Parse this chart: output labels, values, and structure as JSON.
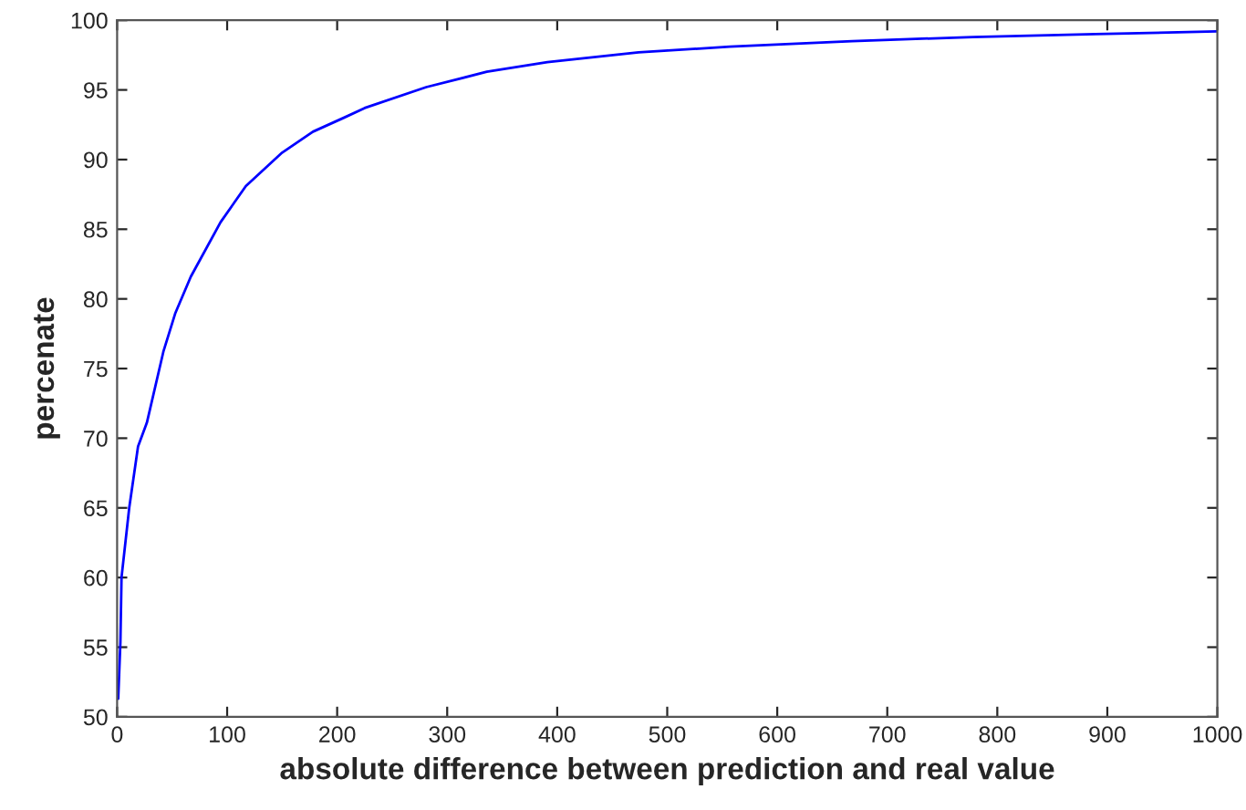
{
  "chart_data": {
    "type": "line",
    "xlabel": "absolute difference between prediction and real value",
    "ylabel": "percenate",
    "xlim": [
      0,
      1000
    ],
    "ylim": [
      50,
      100
    ],
    "xticks": [
      0,
      100,
      200,
      300,
      400,
      500,
      600,
      700,
      800,
      900,
      1000
    ],
    "yticks": [
      50,
      55,
      60,
      65,
      70,
      75,
      80,
      85,
      90,
      95,
      100
    ],
    "grid": false,
    "marker": "none",
    "line_style": "solid",
    "series": [
      {
        "color": "#0000ff",
        "x": [
          1,
          3,
          4,
          11,
          19,
          27,
          42,
          53,
          67,
          94,
          117,
          150,
          178,
          206,
          225,
          281,
          336,
          391,
          474,
          557,
          668,
          778,
          889,
          1000
        ],
        "values": [
          51.3,
          55.4,
          60.0,
          65.0,
          69.4,
          71.1,
          76.2,
          79.0,
          81.6,
          85.5,
          88.1,
          90.5,
          92.0,
          93.0,
          93.7,
          95.2,
          96.3,
          97.0,
          97.7,
          98.1,
          98.5,
          98.8,
          99.0,
          99.2
        ]
      }
    ]
  }
}
